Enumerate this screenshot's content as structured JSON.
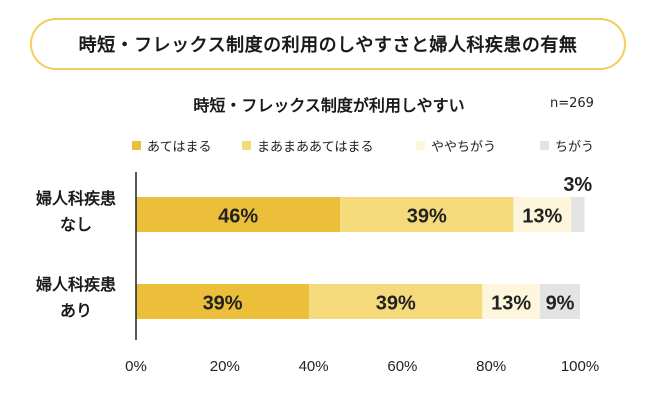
{
  "title": "時短・フレックス制度の利用のしやすさと婦人科疾患の有無",
  "chart_data": {
    "type": "bar",
    "orientation": "horizontal",
    "stacked": true,
    "subtitle": "時短・フレックス制度が利用しやすい",
    "n_label": "n=269",
    "categories": [
      {
        "line1": "婦人科疾患",
        "line2": "なし"
      },
      {
        "line1": "婦人科疾患",
        "line2": "あり"
      }
    ],
    "series": [
      {
        "name": "あてはまる",
        "color": "#ecbf3a",
        "values": [
          46,
          39
        ],
        "labels": [
          "46%",
          "39%"
        ]
      },
      {
        "name": "まあまああてはまる",
        "color": "#f5da7c",
        "values": [
          39,
          39
        ],
        "labels": [
          "39%",
          "39%"
        ]
      },
      {
        "name": "ややちがう",
        "color": "#fdf5dc",
        "values": [
          13,
          13
        ],
        "labels": [
          "13%",
          "13%"
        ]
      },
      {
        "name": "ちがう",
        "color": "#e3e3e3",
        "values": [
          3,
          9
        ],
        "labels": [
          "3%",
          "9%"
        ]
      }
    ],
    "xlim": [
      0,
      100
    ],
    "xticks": [
      "0%",
      "20%",
      "40%",
      "60%",
      "80%",
      "100%"
    ],
    "legend_position": "top",
    "grid": false
  }
}
